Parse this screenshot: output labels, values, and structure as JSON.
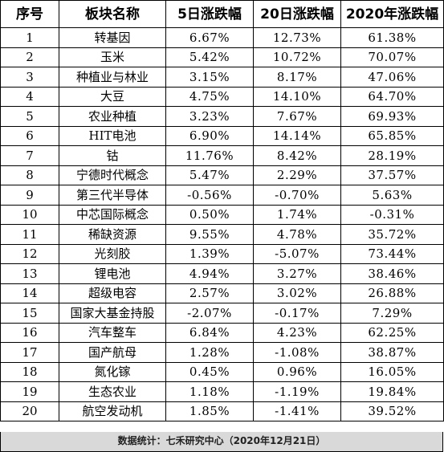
{
  "table": {
    "headers": [
      "序号",
      "板块名称",
      "5日涨跌幅",
      "20日涨跌幅",
      "2020年涨跌幅"
    ],
    "rows": [
      [
        "1",
        "转基因",
        "6.67%",
        "12.73%",
        "61.38%"
      ],
      [
        "2",
        "玉米",
        "5.42%",
        "10.72%",
        "70.07%"
      ],
      [
        "3",
        "种植业与林业",
        "3.15%",
        "8.17%",
        "47.06%"
      ],
      [
        "4",
        "大豆",
        "4.75%",
        "14.10%",
        "64.70%"
      ],
      [
        "5",
        "农业种植",
        "3.23%",
        "7.67%",
        "69.93%"
      ],
      [
        "6",
        "HIT电池",
        "6.90%",
        "14.14%",
        "65.85%"
      ],
      [
        "7",
        "钴",
        "11.76%",
        "8.42%",
        "28.19%"
      ],
      [
        "8",
        "宁德时代概念",
        "5.47%",
        "2.29%",
        "37.57%"
      ],
      [
        "9",
        "第三代半导体",
        "-0.56%",
        "-0.70%",
        "5.63%"
      ],
      [
        "10",
        "中芯国际概念",
        "0.50%",
        "1.74%",
        "-0.31%"
      ],
      [
        "11",
        "稀缺资源",
        "9.55%",
        "4.78%",
        "35.72%"
      ],
      [
        "12",
        "光刻胶",
        "1.39%",
        "-5.07%",
        "73.44%"
      ],
      [
        "13",
        "锂电池",
        "4.94%",
        "3.27%",
        "38.46%"
      ],
      [
        "14",
        "超级电容",
        "2.57%",
        "3.02%",
        "26.88%"
      ],
      [
        "15",
        "国家大基金持股",
        "-2.07%",
        "-0.17%",
        "7.29%"
      ],
      [
        "16",
        "汽车整车",
        "6.84%",
        "4.23%",
        "62.25%"
      ],
      [
        "17",
        "国产航母",
        "1.28%",
        "-1.08%",
        "38.87%"
      ],
      [
        "18",
        "氮化镓",
        "0.45%",
        "0.96%",
        "16.05%"
      ],
      [
        "19",
        "生态农业",
        "1.18%",
        "-1.19%",
        "19.84%"
      ],
      [
        "20",
        "航空发动机",
        "1.85%",
        "-1.41%",
        "39.52%"
      ]
    ]
  },
  "footer": {
    "text": "数据统计：七禾研究中心（2020年12月21日）"
  },
  "colors": {
    "border": "#000000",
    "footer_bg": "#d9d9d9"
  }
}
